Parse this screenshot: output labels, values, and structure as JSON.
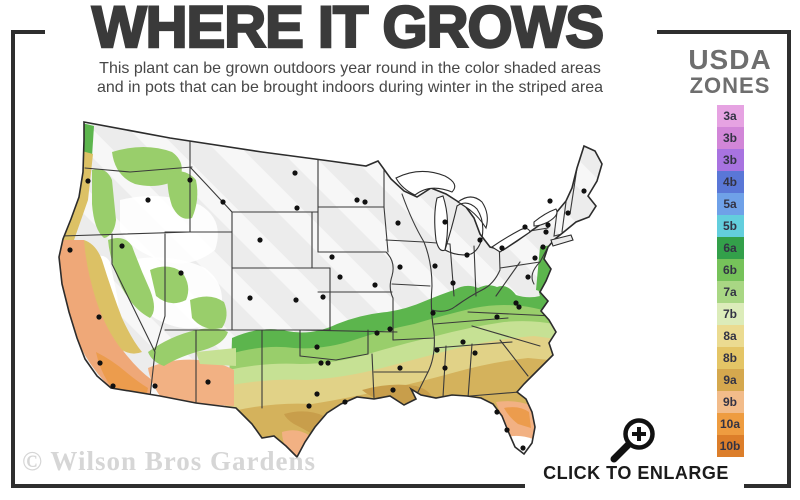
{
  "header": {
    "title": "WHERE IT GROWS",
    "subtitle_line1": "This plant can be grown outdoors year round in the color shaded areas",
    "subtitle_line2": "and in pots that can be brought indoors during winter in the striped area"
  },
  "legend": {
    "title_line1": "USDA",
    "title_line2": "ZONES",
    "zones": [
      {
        "label": "3a",
        "color": "#e6a3e2"
      },
      {
        "label": "3b",
        "color": "#d286d8"
      },
      {
        "label": "3b",
        "color": "#a873e0"
      },
      {
        "label": "4b",
        "color": "#5a77d7"
      },
      {
        "label": "5a",
        "color": "#6fa1e8"
      },
      {
        "label": "5b",
        "color": "#63cedd"
      },
      {
        "label": "6a",
        "color": "#33a04a"
      },
      {
        "label": "6b",
        "color": "#76c25a"
      },
      {
        "label": "7a",
        "color": "#a9d784"
      },
      {
        "label": "7b",
        "color": "#dcecba"
      },
      {
        "label": "8a",
        "color": "#ebdb91"
      },
      {
        "label": "8b",
        "color": "#e4c566"
      },
      {
        "label": "9a",
        "color": "#d5a84e"
      },
      {
        "label": "9b",
        "color": "#f2bc8a"
      },
      {
        "label": "10a",
        "color": "#ee9c40"
      },
      {
        "label": "10b",
        "color": "#dc7e2a"
      }
    ]
  },
  "map": {
    "palette": {
      "base": "#ececec",
      "stripe": "#ffffff",
      "green": "#5cb54d",
      "light_green": "#99ce6b",
      "pale_green": "#c6e194",
      "yellow": "#e1d287",
      "gold": "#d4b25c",
      "mustard": "#c89e4b",
      "peach": "#f2b183",
      "orange": "#ec9c4d",
      "salmon": "#efa878",
      "coast_gold": "#dcc165",
      "white_pocket": "#ffffff",
      "border": "#2c2c2c",
      "state_line": "#3a3a3a",
      "dot": "#111111"
    }
  },
  "watermark": "© Wilson Bros Gardens",
  "cta": {
    "label": "CLICK TO ENLARGE"
  }
}
